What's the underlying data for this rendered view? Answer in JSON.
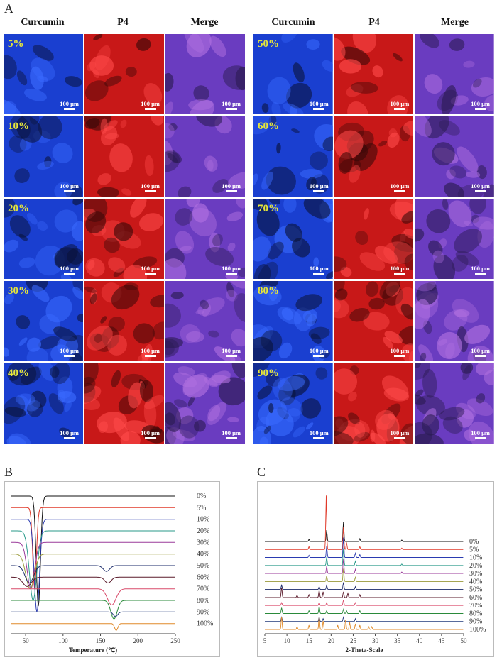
{
  "panels": {
    "a": "A",
    "b": "B",
    "c": "C"
  },
  "micrographs": {
    "columns": [
      "Curcumin",
      "P4",
      "Merge"
    ],
    "scale_label": "100 μm",
    "left_rows": [
      "5%",
      "10%",
      "20%",
      "30%",
      "40%"
    ],
    "right_rows": [
      "50%",
      "60%",
      "70%",
      "80%",
      "90%"
    ],
    "colors": {
      "curcumin": "#1a3fd0",
      "p4": "#c81818",
      "merge": "#6a3cc0",
      "label": "#e6e63a"
    }
  },
  "chart_data": [
    {
      "type": "line",
      "panel": "B",
      "title": "",
      "xlabel": "Temperature (℃)",
      "ylabel": "",
      "xlim": [
        30,
        250
      ],
      "xticks": [
        50,
        100,
        150,
        200,
        250
      ],
      "legend_placement": "right",
      "series": [
        {
          "name": "0%",
          "color": "#111111",
          "baseline": 1,
          "dips": [
            {
              "x": 67,
              "depth": 9.5,
              "width": 4
            }
          ]
        },
        {
          "name": "5%",
          "color": "#e03a2a",
          "baseline": 2,
          "dips": [
            {
              "x": 62,
              "depth": 7.0,
              "width": 3.5
            }
          ]
        },
        {
          "name": "10%",
          "color": "#2a3ab0",
          "baseline": 3,
          "dips": [
            {
              "x": 65,
              "depth": 8.0,
              "width": 5
            }
          ]
        },
        {
          "name": "20%",
          "color": "#2a9a8a",
          "baseline": 4,
          "dips": [
            {
              "x": 60,
              "depth": 6.0,
              "width": 7
            }
          ]
        },
        {
          "name": "30%",
          "color": "#9a3a9a",
          "baseline": 5,
          "dips": [
            {
              "x": 57,
              "depth": 4.0,
              "width": 7
            }
          ]
        },
        {
          "name": "40%",
          "color": "#9a9a3a",
          "baseline": 6,
          "dips": [
            {
              "x": 56,
              "depth": 3.0,
              "width": 8
            }
          ]
        },
        {
          "name": "50%",
          "color": "#1a2a6a",
          "baseline": 7,
          "dips": [
            {
              "x": 55,
              "depth": 1.5,
              "width": 8
            },
            {
              "x": 158,
              "depth": 0.5,
              "width": 6
            }
          ]
        },
        {
          "name": "60%",
          "color": "#5a1a2a",
          "baseline": 8,
          "dips": [
            {
              "x": 52,
              "depth": 0.8,
              "width": 8
            },
            {
              "x": 160,
              "depth": 0.5,
              "width": 6
            }
          ]
        },
        {
          "name": "70%",
          "color": "#d94a6a",
          "baseline": 9,
          "dips": [
            {
              "x": 165,
              "depth": 1.4,
              "width": 8
            }
          ]
        },
        {
          "name": "80%",
          "color": "#2a8a3a",
          "baseline": 10,
          "dips": [
            {
              "x": 168,
              "depth": 1.6,
              "width": 6
            }
          ]
        },
        {
          "name": "90%",
          "color": "#223a7a",
          "baseline": 11,
          "dips": [
            {
              "x": 170,
              "depth": 0.4,
              "width": 4
            }
          ]
        },
        {
          "name": "100%",
          "color": "#e08a2a",
          "baseline": 12,
          "dips": [
            {
              "x": 171,
              "depth": 0.6,
              "width": 3
            }
          ]
        }
      ]
    },
    {
      "type": "line",
      "panel": "C",
      "title": "",
      "xlabel": "2-Theta-Scale",
      "ylabel": "",
      "xlim": [
        5,
        50
      ],
      "xticks": [
        5,
        10,
        15,
        20,
        25,
        30,
        35,
        40,
        45,
        50
      ],
      "legend_placement": "right",
      "series": [
        {
          "name": "0%",
          "color": "#111111",
          "peaks": [
            [
              15.0,
              1.5
            ],
            [
              19.0,
              8
            ],
            [
              22.8,
              14
            ],
            [
              26.5,
              2
            ],
            [
              36,
              1
            ]
          ]
        },
        {
          "name": "5%",
          "color": "#e03a2a",
          "peaks": [
            [
              15.0,
              2
            ],
            [
              18.9,
              38
            ],
            [
              22.8,
              16
            ],
            [
              23.5,
              5
            ],
            [
              26.5,
              2
            ],
            [
              36,
              1
            ]
          ]
        },
        {
          "name": "10%",
          "color": "#2a3ab0",
          "peaks": [
            [
              15.0,
              1.5
            ],
            [
              19.0,
              8
            ],
            [
              22.8,
              14
            ],
            [
              25.5,
              3
            ],
            [
              26.5,
              2
            ]
          ]
        },
        {
          "name": "20%",
          "color": "#2a9a8a",
          "peaks": [
            [
              19.0,
              6
            ],
            [
              22.8,
              12
            ],
            [
              25.5,
              3
            ],
            [
              36,
              1
            ]
          ]
        },
        {
          "name": "30%",
          "color": "#9a3a9a",
          "peaks": [
            [
              19.0,
              5
            ],
            [
              22.8,
              10
            ],
            [
              25.5,
              3
            ],
            [
              36,
              1
            ]
          ]
        },
        {
          "name": "40%",
          "color": "#9a9a3a",
          "peaks": [
            [
              19.0,
              4
            ],
            [
              22.8,
              9
            ],
            [
              25.5,
              3
            ]
          ]
        },
        {
          "name": "50%",
          "color": "#1a2a6a",
          "peaks": [
            [
              8.8,
              3
            ],
            [
              17.3,
              2
            ],
            [
              19.0,
              3
            ],
            [
              22.8,
              5
            ],
            [
              25.5,
              2
            ]
          ]
        },
        {
          "name": "60%",
          "color": "#5a1a2a",
          "peaks": [
            [
              8.8,
              7
            ],
            [
              12.3,
              1.5
            ],
            [
              15.0,
              2
            ],
            [
              17.3,
              5
            ],
            [
              18.2,
              4
            ],
            [
              22.8,
              4
            ],
            [
              23.8,
              3
            ],
            [
              26.5,
              2
            ]
          ]
        },
        {
          "name": "70%",
          "color": "#d94a6a",
          "peaks": [
            [
              8.8,
              2
            ],
            [
              17.3,
              2
            ],
            [
              19.0,
              2
            ],
            [
              22.8,
              4
            ],
            [
              25.5,
              2
            ]
          ]
        },
        {
          "name": "80%",
          "color": "#2a8a3a",
          "peaks": [
            [
              8.8,
              4
            ],
            [
              15.0,
              2
            ],
            [
              17.3,
              5
            ],
            [
              19.0,
              2
            ],
            [
              22.8,
              3
            ],
            [
              23.5,
              2
            ],
            [
              26.5,
              2
            ]
          ]
        },
        {
          "name": "90%",
          "color": "#223a7a",
          "peaks": [
            [
              8.8,
              3
            ],
            [
              17.3,
              3
            ],
            [
              18.2,
              2
            ],
            [
              22.8,
              3
            ],
            [
              25.5,
              2
            ]
          ]
        },
        {
          "name": "100%",
          "color": "#e08a2a",
          "peaks": [
            [
              8.8,
              9
            ],
            [
              12.3,
              2
            ],
            [
              15.0,
              3
            ],
            [
              17.3,
              9
            ],
            [
              18.2,
              6
            ],
            [
              21.5,
              3
            ],
            [
              23.3,
              7
            ],
            [
              24.2,
              5
            ],
            [
              25.5,
              4
            ],
            [
              26.5,
              3
            ],
            [
              28.5,
              2
            ],
            [
              29.2,
              2
            ]
          ]
        }
      ]
    }
  ]
}
